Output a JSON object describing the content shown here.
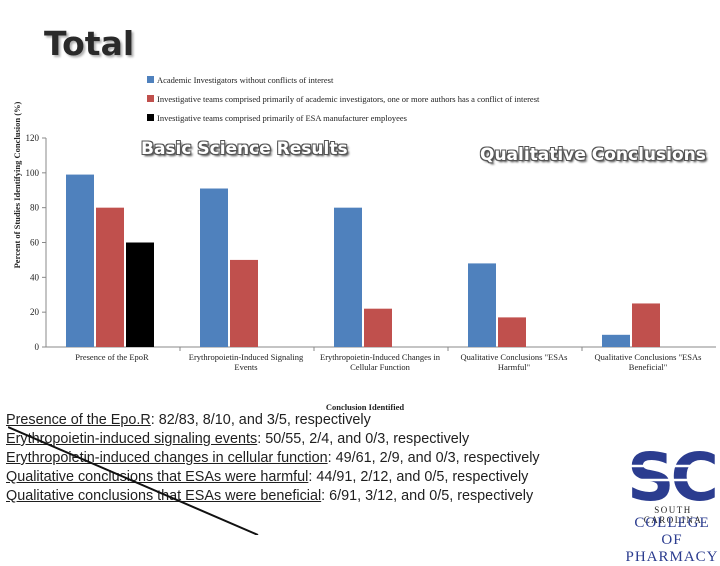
{
  "slide": {
    "title": "Total"
  },
  "legend": [
    {
      "label": "Academic Investigators without conflicts of interest",
      "color": "#4f81bd"
    },
    {
      "label": "Investigative teams comprised primarily of academic investigators, one or more authors has a conflict of interest",
      "color": "#c0504d"
    },
    {
      "label": "Investigative teams comprised primarily of ESA manufacturer employees",
      "color": "#000000"
    }
  ],
  "chart_data": {
    "type": "bar",
    "categories": [
      "Presence of the EpoR",
      "Erythropoietin-Induced Signaling Events",
      "Erythropoietin-Induced Changes in Cellular Function",
      "Qualitative Conclusions \"ESAs Harmful\"",
      "Qualitative Conclusions \"ESAs Beneficial\""
    ],
    "series": [
      {
        "name": "Academic Investigators without conflicts of interest",
        "values": [
          99,
          91,
          80,
          48,
          7
        ]
      },
      {
        "name": "Investigative teams comprised primarily of academic investigators, one or more authors has a conflict of interest",
        "values": [
          80,
          50,
          22,
          17,
          25
        ]
      },
      {
        "name": "Investigative teams comprised primarily of ESA manufacturer employees",
        "values": [
          60,
          0,
          0,
          0,
          0
        ]
      }
    ],
    "ylim": [
      0,
      120
    ],
    "yticks": [
      0,
      20,
      40,
      60,
      80,
      100,
      120
    ],
    "ylabel": "Percent of Studies Identifying Conclusion (%)",
    "xlabel": "Conclusion Identified",
    "annotations": [
      "Basic Science Results",
      "Qualitative Conclusions"
    ]
  },
  "notes": [
    {
      "label": "Presence of the Epo.R",
      "value": "82/83, 8/10, and 3/5, respectively"
    },
    {
      "label": "Erythropoietin-induced signaling events",
      "value": "50/55, 2/4, and 0/3, respectively"
    },
    {
      "label": "Erythropoietin-induced changes in cellular function",
      "value": "49/61, 2/9, and 0/3, respectively"
    },
    {
      "label": "Qualitative conclusions that ESAs were harmful",
      "value": "44/91, 2/12, and 0/5, respectively"
    },
    {
      "label": "Qualitative conclusions that ESAs were beneficial",
      "value": "6/91, 3/12, and 0/5, respectively"
    }
  ],
  "logo": {
    "letters": "SC",
    "line1": "SOUTH CAROLINA",
    "line2": "COLLEGE OF PHARMACY"
  }
}
